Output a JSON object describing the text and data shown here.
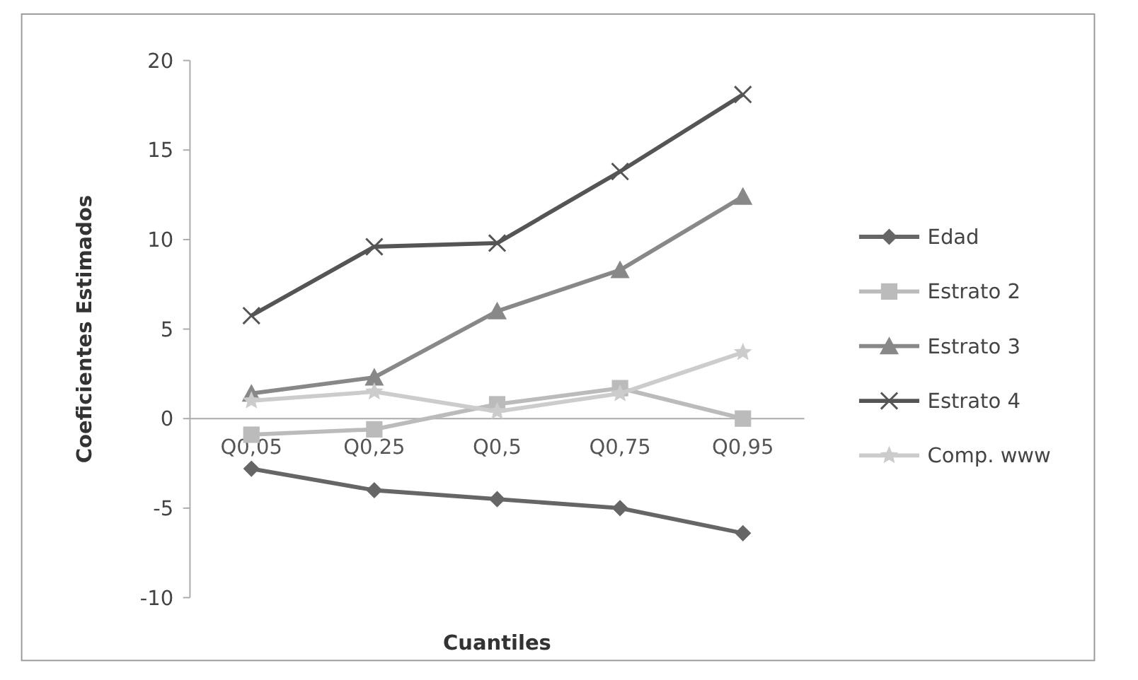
{
  "chart_data": {
    "type": "line",
    "xlabel": "Cuantiles",
    "ylabel": "Coeficientes Estimados",
    "categories": [
      "Q0,05",
      "Q0,25",
      "Q0,5",
      "Q0,75",
      "Q0,95"
    ],
    "series": [
      {
        "name": "Edad",
        "color": "#666666",
        "marker": "diamond",
        "values": [
          -2.8,
          -4.0,
          -4.5,
          -5.0,
          -6.4
        ]
      },
      {
        "name": "Estrato 2",
        "color": "#bbbbbb",
        "marker": "square",
        "values": [
          -0.9,
          -0.6,
          0.8,
          1.7,
          0.0
        ]
      },
      {
        "name": "Estrato 3",
        "color": "#888888",
        "marker": "triangle",
        "values": [
          1.4,
          2.3,
          6.0,
          8.3,
          12.4
        ]
      },
      {
        "name": "Estrato 4",
        "color": "#555555",
        "marker": "cross",
        "values": [
          5.75,
          9.6,
          9.8,
          13.8,
          18.1
        ]
      },
      {
        "name": "Comp. www",
        "color": "#cccccc",
        "marker": "star",
        "values": [
          1.0,
          1.5,
          0.4,
          1.4,
          3.7
        ]
      }
    ],
    "ylim": [
      -10,
      20
    ],
    "yticks": [
      -10,
      -5,
      0,
      5,
      10,
      15,
      20
    ],
    "grid": false,
    "legend": "right"
  }
}
